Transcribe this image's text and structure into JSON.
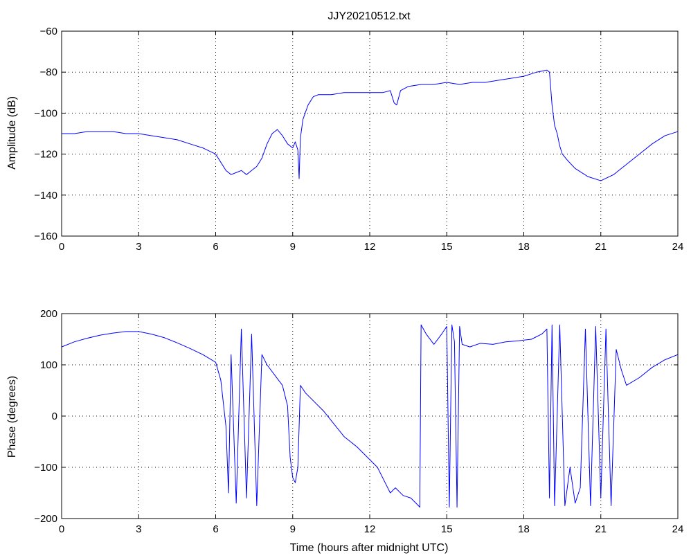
{
  "figure": {
    "title": "JJY20210512.txt",
    "line_color": "#0000ff"
  },
  "chart_data": [
    {
      "type": "line",
      "title": "JJY20210512.txt",
      "xlabel": "",
      "ylabel": "Amplitude (dB)",
      "xlim": [
        0,
        24
      ],
      "ylim": [
        -160,
        -60
      ],
      "xticks": [
        0,
        3,
        6,
        9,
        12,
        15,
        18,
        21,
        24
      ],
      "yticks": [
        -60,
        -80,
        -100,
        -120,
        -140,
        -160
      ],
      "xtick_labels": [
        "0",
        "3",
        "6",
        "9",
        "12",
        "15",
        "18",
        "21",
        "24"
      ],
      "ytick_labels": [
        "−60",
        "−80",
        "−100",
        "−120",
        "−140",
        "−160"
      ],
      "grid": true,
      "series": [
        {
          "color": "#0000ff",
          "x": [
            0,
            0.5,
            1,
            1.5,
            2,
            2.5,
            3,
            3.5,
            4,
            4.5,
            5,
            5.5,
            6,
            6.2,
            6.4,
            6.6,
            6.8,
            7.0,
            7.2,
            7.4,
            7.6,
            7.8,
            8.0,
            8.2,
            8.4,
            8.6,
            8.8,
            9.0,
            9.1,
            9.2,
            9.25,
            9.3,
            9.4,
            9.6,
            9.8,
            10,
            10.5,
            11,
            11.5,
            12,
            12.5,
            12.8,
            12.95,
            13.05,
            13.2,
            13.5,
            14,
            14.5,
            15,
            15.5,
            16,
            16.5,
            17,
            17.5,
            18,
            18.5,
            18.9,
            19.0,
            19.05,
            19.1,
            19.2,
            19.3,
            19.4,
            19.5,
            19.7,
            20,
            20.5,
            21,
            21.5,
            22,
            22.5,
            23,
            23.5,
            24
          ],
          "y": [
            -110,
            -110,
            -109,
            -109,
            -109,
            -110,
            -110,
            -111,
            -112,
            -113,
            -115,
            -117,
            -120,
            -124,
            -128,
            -130,
            -129,
            -128,
            -130,
            -128,
            -126,
            -122,
            -115,
            -110,
            -108,
            -111,
            -115,
            -117,
            -114,
            -118,
            -132,
            -112,
            -103,
            -96,
            -92,
            -91,
            -91,
            -90,
            -90,
            -90,
            -90,
            -89,
            -95,
            -96,
            -89,
            -87,
            -86,
            -86,
            -85,
            -86,
            -85,
            -85,
            -84,
            -83,
            -82,
            -80,
            -79,
            -80,
            -88,
            -96,
            -106,
            -110,
            -116,
            -120,
            -123,
            -127,
            -131,
            -133,
            -130,
            -125,
            -120,
            -115,
            -111,
            -109
          ]
        }
      ]
    },
    {
      "type": "line",
      "title": "",
      "xlabel": "Time (hours after midnight UTC)",
      "ylabel": "Phase (degrees)",
      "xlim": [
        0,
        24
      ],
      "ylim": [
        -200,
        200
      ],
      "xticks": [
        0,
        3,
        6,
        9,
        12,
        15,
        18,
        21,
        24
      ],
      "yticks": [
        200,
        100,
        0,
        -100,
        -200
      ],
      "xtick_labels": [
        "0",
        "3",
        "6",
        "9",
        "12",
        "15",
        "18",
        "21",
        "24"
      ],
      "ytick_labels": [
        "200",
        "100",
        "0",
        "−100",
        "−200"
      ],
      "grid": true,
      "series": [
        {
          "color": "#0000ff",
          "x": [
            0,
            0.5,
            1,
            1.5,
            2,
            2.5,
            3,
            3.5,
            4,
            4.5,
            5,
            5.5,
            6,
            6.2,
            6.4,
            6.5,
            6.6,
            6.8,
            7.0,
            7.2,
            7.4,
            7.6,
            7.8,
            8.0,
            8.3,
            8.6,
            8.8,
            8.9,
            9.0,
            9.1,
            9.2,
            9.3,
            9.5,
            9.8,
            10.2,
            10.6,
            11.0,
            11.5,
            12.0,
            12.3,
            12.6,
            12.8,
            13.0,
            13.3,
            13.6,
            13.9,
            13.95,
            14.0,
            14.2,
            14.5,
            14.8,
            15.0,
            15.1,
            15.2,
            15.3,
            15.4,
            15.5,
            15.6,
            15.9,
            16.3,
            16.8,
            17.3,
            17.8,
            18.3,
            18.7,
            18.9,
            19.0,
            19.1,
            19.2,
            19.4,
            19.6,
            19.8,
            20.0,
            20.2,
            20.4,
            20.6,
            20.8,
            21.0,
            21.2,
            21.4,
            21.6,
            21.8,
            22.0,
            22.5,
            23.0,
            23.5,
            24
          ],
          "y": [
            135,
            145,
            152,
            158,
            162,
            165,
            165,
            160,
            153,
            143,
            132,
            120,
            105,
            70,
            -20,
            -150,
            120,
            -170,
            170,
            -160,
            160,
            -175,
            120,
            100,
            80,
            60,
            20,
            -80,
            -120,
            -130,
            -100,
            60,
            45,
            30,
            10,
            -15,
            -40,
            -60,
            -85,
            -100,
            -130,
            -150,
            -140,
            -155,
            -160,
            -175,
            -178,
            178,
            160,
            140,
            160,
            175,
            -178,
            178,
            145,
            -178,
            175,
            140,
            135,
            142,
            140,
            145,
            147,
            150,
            160,
            170,
            -160,
            178,
            -175,
            178,
            -175,
            -100,
            -170,
            -140,
            170,
            -175,
            175,
            -160,
            170,
            -175,
            130,
            90,
            60,
            75,
            95,
            110,
            120
          ]
        }
      ]
    }
  ]
}
